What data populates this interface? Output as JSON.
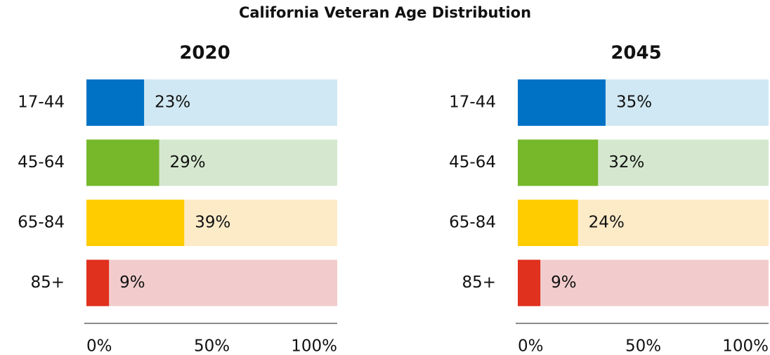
{
  "title": "California Veteran Age Distribution",
  "chart_data": [
    {
      "type": "bar",
      "orientation": "horizontal",
      "title": "2020",
      "categories": [
        "17-44",
        "45-64",
        "65-84",
        "85+"
      ],
      "values": [
        23,
        29,
        39,
        9
      ],
      "value_labels": [
        "23%",
        "29%",
        "39%",
        "9%"
      ],
      "colors": [
        "#0072c6",
        "#76b82a",
        "#ffcc00",
        "#e0301e"
      ],
      "track_colors": [
        "#d0e8f3",
        "#d5e8cf",
        "#fdebc8",
        "#f2cccc"
      ],
      "xlim": [
        0,
        100
      ],
      "xticks": [
        {
          "value": 0,
          "label": "0%"
        },
        {
          "value": 50,
          "label": "50%"
        },
        {
          "value": 100,
          "label": "100%"
        }
      ]
    },
    {
      "type": "bar",
      "orientation": "horizontal",
      "title": "2045",
      "categories": [
        "17-44",
        "45-64",
        "65-84",
        "85+"
      ],
      "values": [
        35,
        32,
        24,
        9
      ],
      "value_labels": [
        "35%",
        "32%",
        "24%",
        "9%"
      ],
      "colors": [
        "#0072c6",
        "#76b82a",
        "#ffcc00",
        "#e0301e"
      ],
      "track_colors": [
        "#d0e8f3",
        "#d5e8cf",
        "#fdebc8",
        "#f2cccc"
      ],
      "xlim": [
        0,
        100
      ],
      "xticks": [
        {
          "value": 0,
          "label": "0%"
        },
        {
          "value": 50,
          "label": "50%"
        },
        {
          "value": 100,
          "label": "100%"
        }
      ]
    }
  ]
}
